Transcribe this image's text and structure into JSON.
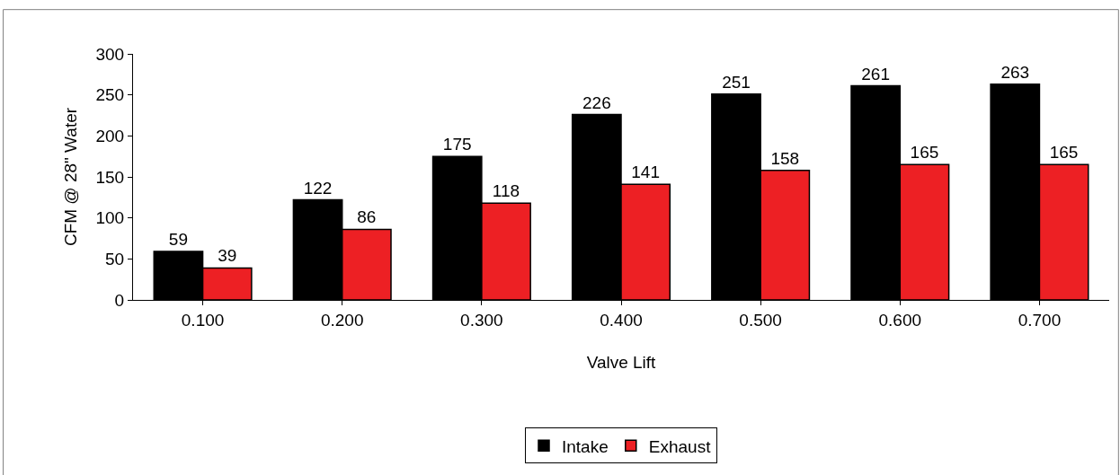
{
  "chart_data": {
    "type": "bar",
    "xlabel": "Valve Lift",
    "ylabel": "CFM @ 28\" Water",
    "categories": [
      "0.100",
      "0.200",
      "0.300",
      "0.400",
      "0.500",
      "0.600",
      "0.700"
    ],
    "series": [
      {
        "name": "Intake",
        "color": "#000000",
        "values": [
          59,
          122,
          175,
          226,
          251,
          261,
          263
        ]
      },
      {
        "name": "Exhaust",
        "color": "#ed2024",
        "values": [
          39,
          86,
          118,
          141,
          158,
          165,
          165
        ]
      }
    ],
    "ylim": [
      0,
      300
    ],
    "yticks": [
      0,
      50,
      100,
      150,
      200,
      250,
      300
    ],
    "legend": "bottom",
    "data_labels": true
  }
}
